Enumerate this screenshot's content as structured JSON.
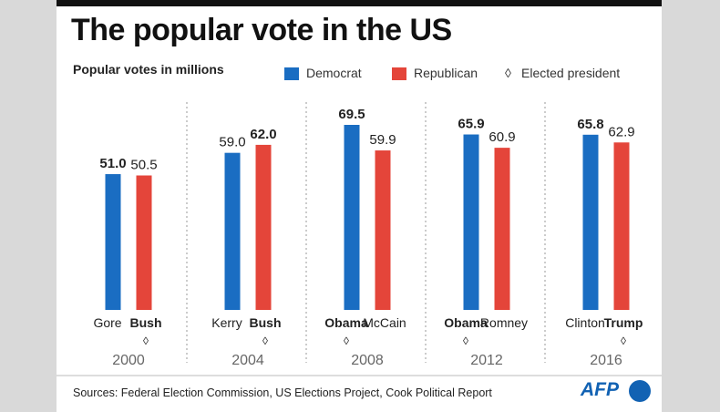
{
  "title": "The popular vote in the US",
  "subtitle": "Popular votes in millions",
  "legend": {
    "democrat": "Democrat",
    "republican": "Republican",
    "elected_marker": "◊",
    "elected": "Elected president"
  },
  "colors": {
    "democrat": "#1a6dc2",
    "republican": "#e4453a",
    "text": "#222222",
    "year": "#666666"
  },
  "elected_marker": "◊",
  "chart_data": {
    "type": "bar",
    "title": "The popular vote in the US",
    "ylabel": "Popular votes in millions",
    "ylim": [
      0,
      69.5
    ],
    "categories": [
      "2000",
      "2004",
      "2008",
      "2012",
      "2016"
    ],
    "series": [
      {
        "name": "Democrat",
        "values": [
          51.0,
          59.0,
          69.5,
          65.9,
          65.8
        ]
      },
      {
        "name": "Republican",
        "values": [
          50.5,
          62.0,
          59.9,
          60.9,
          62.9
        ]
      }
    ],
    "groups": [
      {
        "year": "2000",
        "dem": {
          "name": "Gore",
          "value": 51.0,
          "label": "51.0",
          "elected": false
        },
        "rep": {
          "name": "Bush",
          "value": 50.5,
          "label": "50.5",
          "elected": true
        }
      },
      {
        "year": "2004",
        "dem": {
          "name": "Kerry",
          "value": 59.0,
          "label": "59.0",
          "elected": false
        },
        "rep": {
          "name": "Bush",
          "value": 62.0,
          "label": "62.0",
          "elected": true
        }
      },
      {
        "year": "2008",
        "dem": {
          "name": "Obama",
          "value": 69.5,
          "label": "69.5",
          "elected": true
        },
        "rep": {
          "name": "McCain",
          "value": 59.9,
          "label": "59.9",
          "elected": false
        }
      },
      {
        "year": "2012",
        "dem": {
          "name": "Obama",
          "value": 65.9,
          "label": "65.9",
          "elected": true
        },
        "rep": {
          "name": "Romney",
          "value": 60.9,
          "label": "60.9",
          "elected": false
        }
      },
      {
        "year": "2016",
        "dem": {
          "name": "Clinton",
          "value": 65.8,
          "label": "65.8",
          "elected": false
        },
        "rep": {
          "name": "Trump",
          "value": 62.9,
          "label": "62.9",
          "elected": true
        }
      }
    ],
    "vote_labels_bold": [
      {
        "dem": true,
        "rep": false
      },
      {
        "dem": false,
        "rep": true
      },
      {
        "dem": true,
        "rep": false
      },
      {
        "dem": true,
        "rep": false
      },
      {
        "dem": true,
        "rep": false
      }
    ],
    "grid": false,
    "legend_position": "top-right"
  },
  "footer": {
    "source": "Sources: Federal Election Commission, US Elections Project, Cook Political Report",
    "logo": "AFP"
  }
}
